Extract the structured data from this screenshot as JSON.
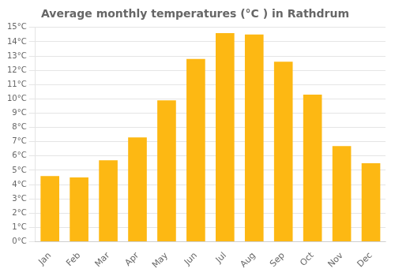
{
  "chart_data": {
    "type": "bar",
    "title": "Average monthly temperatures (°C ) in Rathdrum",
    "categories": [
      "Jan",
      "Feb",
      "Mar",
      "Apr",
      "May",
      "Jun",
      "Jul",
      "Aug",
      "Sep",
      "Oct",
      "Nov",
      "Dec"
    ],
    "values": [
      4.6,
      4.5,
      5.7,
      7.3,
      9.9,
      12.8,
      14.6,
      14.5,
      12.6,
      10.3,
      6.7,
      5.5
    ],
    "color": "#FDB813",
    "ylim": [
      0,
      15
    ],
    "yticks": [
      {
        "value": 0,
        "label": "0°C"
      },
      {
        "value": 1,
        "label": "1°C"
      },
      {
        "value": 2,
        "label": "2°C"
      },
      {
        "value": 3,
        "label": "3°C"
      },
      {
        "value": 4,
        "label": "4°C"
      },
      {
        "value": 5,
        "label": "5°C"
      },
      {
        "value": 6,
        "label": "6°C"
      },
      {
        "value": 7,
        "label": "7°C"
      },
      {
        "value": 8,
        "label": "8°C"
      },
      {
        "value": 9,
        "label": "9°C"
      },
      {
        "value": 10,
        "label": "10°C"
      },
      {
        "value": 11,
        "label": "11°C"
      },
      {
        "value": 12,
        "label": "12°C"
      },
      {
        "value": 13,
        "label": "13°C"
      },
      {
        "value": 14,
        "label": "14°C"
      },
      {
        "value": 15,
        "label": "15°C"
      }
    ],
    "grid": true
  }
}
